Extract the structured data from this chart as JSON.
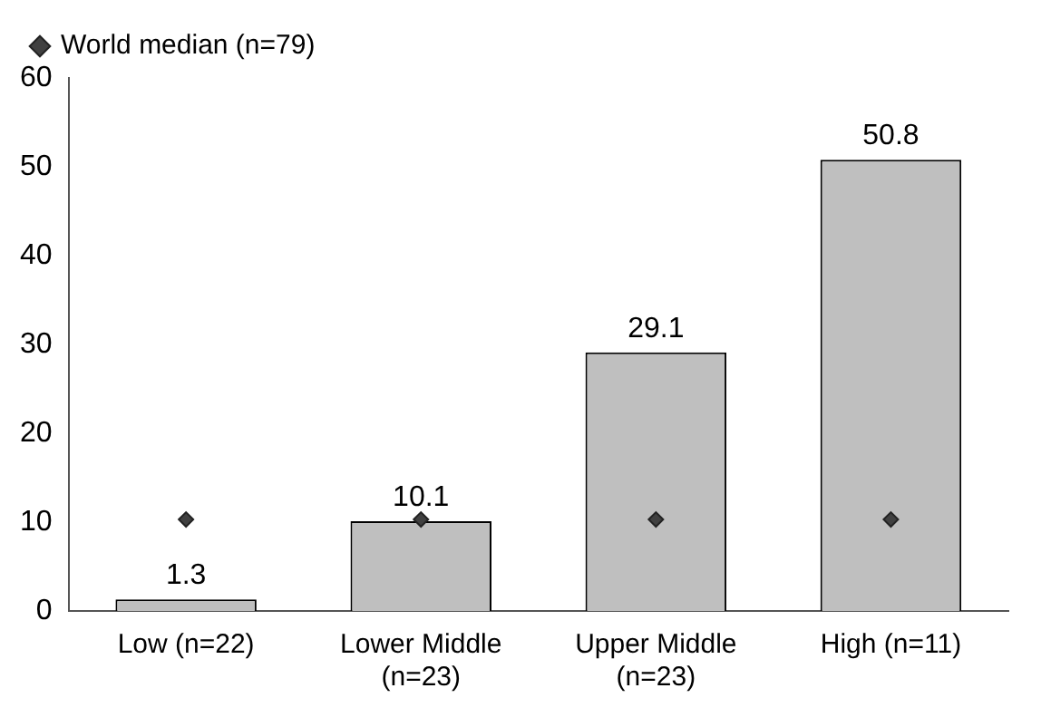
{
  "chart_data": {
    "type": "bar",
    "categories": [
      "Low (n=22)",
      "Lower Middle (n=23)",
      "Upper Middle (n=23)",
      "High (n=11)"
    ],
    "series": [
      {
        "color": "#bfbfbf",
        "values": [
          1.3,
          10.1,
          29.1,
          50.8
        ],
        "value_labels": [
          "1.3",
          "10.1",
          "29.1",
          "50.8"
        ]
      },
      {
        "type": "scatter",
        "name": "World median (n=79)",
        "color": "#404040",
        "values": [
          10.3,
          10.3,
          10.3,
          10.3
        ]
      }
    ],
    "ylim": [
      0,
      60
    ],
    "yticks": [
      0,
      10,
      20,
      30,
      40,
      50,
      60
    ],
    "grid": false,
    "legend": "top left",
    "marker": "diamond"
  }
}
